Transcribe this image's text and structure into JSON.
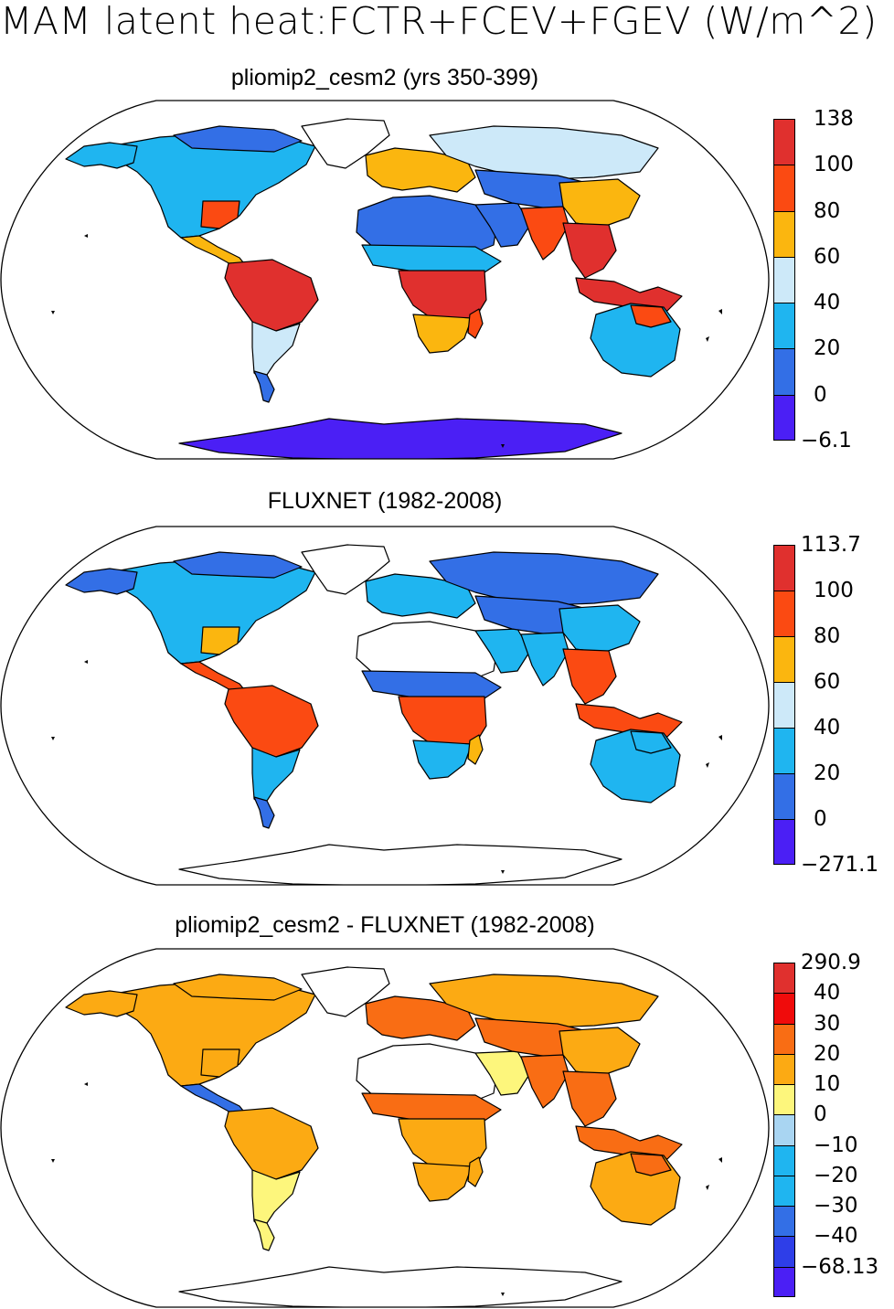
{
  "main_title": "MAM latent heat:FCTR+FCEV+FGEV (W/m^2)",
  "panels": [
    {
      "title": "pliomip2_cesm2 (yrs 350-399)",
      "labels": [
        "138",
        "100",
        "80",
        "60",
        "40",
        "20",
        "0",
        "−6.1"
      ],
      "colors": [
        "#e0302e",
        "#fb4a12",
        "#fbb60f",
        "#cde9f9",
        "#1fb5f0",
        "#336fe6",
        "#4b1ff5"
      ],
      "fields": {
        "north_america": "#1fb5f0",
        "alaska": "#1fb5f0",
        "canada_north": "#336fe6",
        "us_southeast": "#fb4a12",
        "central_america": "#fbb60f",
        "amazon": "#e0302e",
        "south_america_south": "#cde9f9",
        "patagonia": "#336fe6",
        "greenland": "#ffffff",
        "europe": "#fbb60f",
        "siberia": "#cde9f9",
        "sahara": "#336fe6",
        "sahel": "#1fb5f0",
        "central_africa": "#e0302e",
        "southern_africa": "#fbb60f",
        "madagascar": "#fb4a12",
        "middle_east": "#336fe6",
        "central_asia": "#336fe6",
        "india": "#fb4a12",
        "east_asia": "#fbb60f",
        "se_asia": "#e0302e",
        "indonesia": "#e0302e",
        "australia": "#1fb5f0",
        "australia_north": "#fb4a12",
        "antarctica": "#4b1ff5"
      }
    },
    {
      "title": "FLUXNET (1982-2008)",
      "labels": [
        "113.7",
        "100",
        "80",
        "60",
        "40",
        "20",
        "0",
        "−271.1"
      ],
      "colors": [
        "#e0302e",
        "#fb4a12",
        "#fbb60f",
        "#cde9f9",
        "#1fb5f0",
        "#336fe6",
        "#4b1ff5"
      ],
      "fields": {
        "north_america": "#1fb5f0",
        "alaska": "#336fe6",
        "canada_north": "#336fe6",
        "us_southeast": "#fbb60f",
        "central_america": "#fb4a12",
        "amazon": "#fb4a12",
        "south_america_south": "#1fb5f0",
        "patagonia": "#336fe6",
        "greenland": "#ffffff",
        "europe": "#1fb5f0",
        "siberia": "#336fe6",
        "sahara": "#ffffff",
        "sahel": "#336fe6",
        "central_africa": "#fb4a12",
        "southern_africa": "#1fb5f0",
        "madagascar": "#fbb60f",
        "middle_east": "#1fb5f0",
        "central_asia": "#336fe6",
        "india": "#1fb5f0",
        "east_asia": "#1fb5f0",
        "se_asia": "#fb4a12",
        "indonesia": "#fb4a12",
        "australia": "#1fb5f0",
        "australia_north": "#1fb5f0",
        "antarctica": "#ffffff"
      }
    },
    {
      "title": "pliomip2_cesm2 - FLUXNET (1982-2008)",
      "labels": [
        "290.9",
        "40",
        "30",
        "20",
        "10",
        "0",
        "−10",
        "−20",
        "−30",
        "−40",
        "−68.13"
      ],
      "colors": [
        "#e0302e",
        "#f00b0b",
        "#f96d14",
        "#fcaa13",
        "#fdf67c",
        "#a9d5f2",
        "#1fb5f0",
        "#1fb5f0",
        "#336fe6",
        "#2e3ee8",
        "#4b1ff5"
      ],
      "fields": {
        "north_america": "#fcaa13",
        "alaska": "#fcaa13",
        "canada_north": "#fcaa13",
        "us_southeast": "#fcaa13",
        "central_america": "#336fe6",
        "amazon": "#fcaa13",
        "south_america_south": "#fdf67c",
        "patagonia": "#fdf67c",
        "greenland": "#ffffff",
        "europe": "#f96d14",
        "siberia": "#fcaa13",
        "sahara": "#ffffff",
        "sahel": "#f96d14",
        "central_africa": "#fcaa13",
        "southern_africa": "#fcaa13",
        "madagascar": "#fcaa13",
        "middle_east": "#fdf67c",
        "central_asia": "#f96d14",
        "india": "#f96d14",
        "east_asia": "#fcaa13",
        "se_asia": "#f96d14",
        "indonesia": "#f96d14",
        "australia": "#fcaa13",
        "australia_north": "#f96d14",
        "antarctica": "#ffffff"
      }
    }
  ]
}
